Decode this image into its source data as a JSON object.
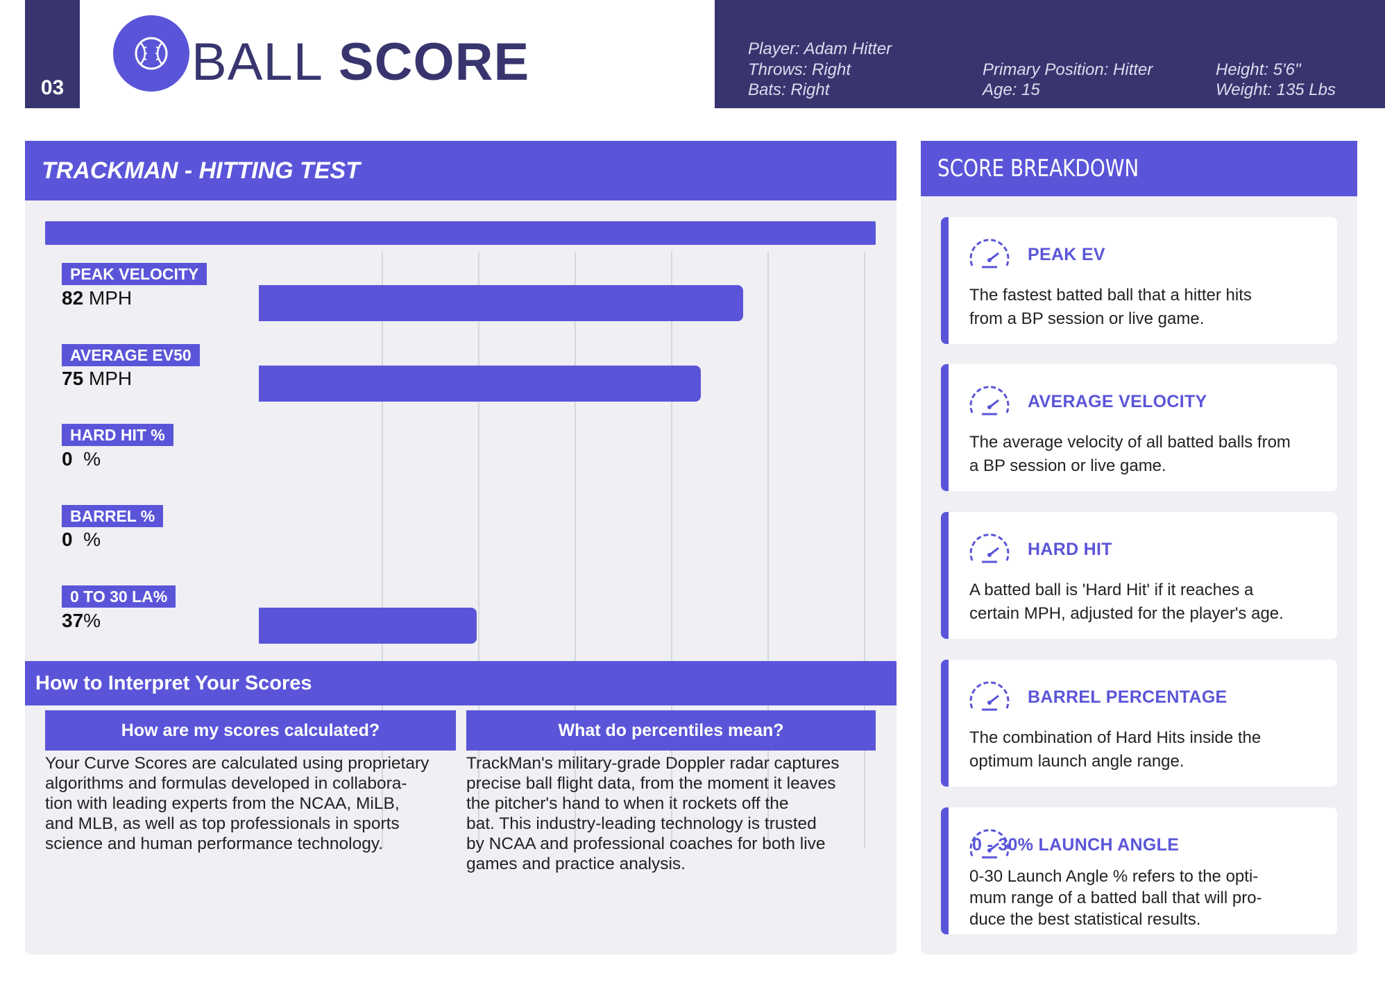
{
  "header": {
    "page_number": "03",
    "logo_text_thin": "BALL",
    "logo_text_bold": "SCORE",
    "player": "Player: Adam Hitter",
    "throws": "Throws: Right",
    "bats": "Bats: Right",
    "primary_position": "Primary Position: Hitter",
    "age": "Age: 15",
    "height": "Height: 5'6\"",
    "weight": "Weight: 135 Lbs"
  },
  "colors": {
    "accent": "#5a55d8",
    "navy": "#38356e",
    "panel_bg": "#efeff4"
  },
  "trackman": {
    "title": "TRACKMAN - HITTING TEST",
    "metrics": [
      {
        "label": "PEAK VELOCITY",
        "value": "82",
        "unit": " MPH",
        "bar_fraction": 0.8
      },
      {
        "label": "AVERAGE EV50",
        "value": "75",
        "unit": " MPH",
        "bar_fraction": 0.73
      },
      {
        "label": "HARD HIT %",
        "value": "0",
        "unit": "  %",
        "bar_fraction": 0
      },
      {
        "label": "BARREL %",
        "value": "0",
        "unit": "  %",
        "bar_fraction": 0
      },
      {
        "label": "0 TO 30 LA%",
        "value": "37",
        "unit": "%",
        "bar_fraction": 0.36
      }
    ]
  },
  "interpret": {
    "title": "How to Interpret Your Scores",
    "left_heading": "How are my scores calculated?",
    "left_lines": [
      "Your Curve Scores are calculated using proprietary",
      "algorithms and formulas developed in collabora-",
      "tion with leading experts from the NCAA, MiLB,",
      "and MLB, as well as top professionals in sports",
      "science and human performance technology."
    ],
    "right_heading": "What do percentiles mean?",
    "right_lines": [
      "TrackMan's military-grade Doppler radar captures",
      "precise ball flight data, from the moment it leaves",
      "the pitcher's hand to when it rockets off the",
      "bat. This industry-leading technology is trusted",
      "by NCAA and professional coaches for both live",
      "games and practice analysis."
    ]
  },
  "breakdown": {
    "title": "SCORE BREAKDOWN",
    "cards": [
      {
        "title": "PEAK EV",
        "lines": [
          "The fastest batted ball that a hitter hits",
          "from a BP session or live game."
        ]
      },
      {
        "title": "AVERAGE VELOCITY",
        "lines": [
          "The average velocity of all batted balls from",
          "a BP session or live game."
        ]
      },
      {
        "title": "HARD HIT",
        "lines": [
          "A batted ball is 'Hard Hit' if it reaches a",
          "certain MPH, adjusted for the player's age."
        ]
      },
      {
        "title": "BARREL PERCENTAGE",
        "lines": [
          "The combination of Hard Hits inside the",
          "optimum launch angle range."
        ]
      },
      {
        "title": "0 - 30% LAUNCH ANGLE",
        "lines": [
          "0-30 Launch Angle % refers to the opti-",
          "mum range of a batted ball that will pro-",
          "duce the best statistical results."
        ]
      }
    ]
  }
}
